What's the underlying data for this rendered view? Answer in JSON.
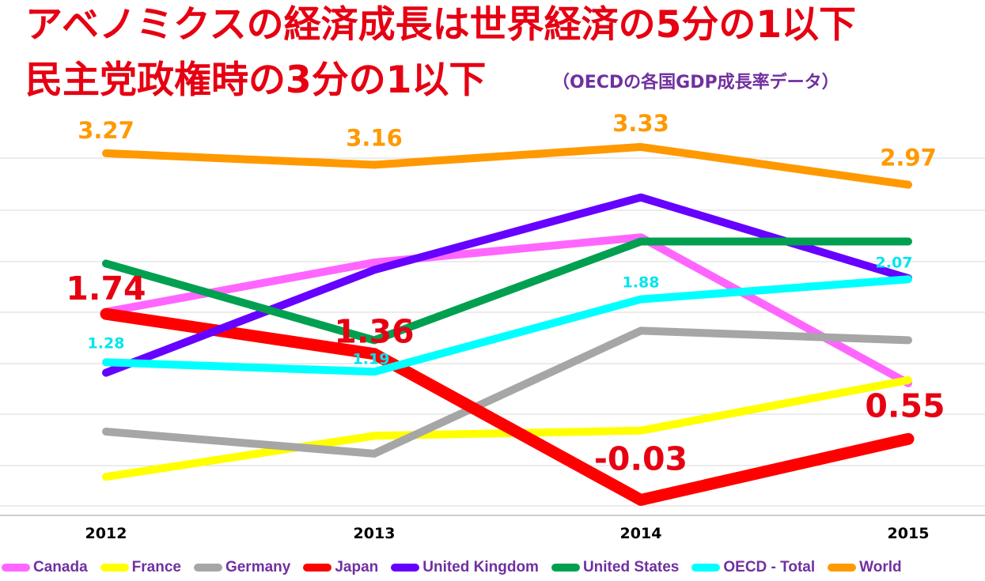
{
  "header": {
    "title_line1": "アベノミクスの経済成長は世界経済の5分の1以下",
    "title_line2": "民主党政権時の3分の1以下",
    "subtitle": "（OECDの各国GDP成長率データ）"
  },
  "chart_data": {
    "type": "line",
    "categories": [
      "2012",
      "2013",
      "2014",
      "2015"
    ],
    "ylim": [
      -0.2,
      3.6
    ],
    "grid": true,
    "legend_position": "bottom",
    "series": [
      {
        "name": "Canada",
        "color": "#ff66ff",
        "values": [
          1.76,
          2.23,
          2.47,
          1.08
        ]
      },
      {
        "name": "France",
        "color": "#ffff00",
        "values": [
          0.19,
          0.58,
          0.63,
          1.11
        ]
      },
      {
        "name": "Germany",
        "color": "#a6a6a6",
        "values": [
          0.62,
          0.41,
          1.58,
          1.49
        ]
      },
      {
        "name": "Japan",
        "color": "#ff0000",
        "values": [
          1.74,
          1.36,
          -0.03,
          0.55
        ]
      },
      {
        "name": "United Kingdom",
        "color": "#6600ff",
        "values": [
          1.18,
          2.16,
          2.85,
          2.08
        ]
      },
      {
        "name": "United States",
        "color": "#00a050",
        "values": [
          2.22,
          1.49,
          2.43,
          2.43
        ]
      },
      {
        "name": "OECD - Total",
        "color": "#00ffff",
        "values": [
          1.28,
          1.19,
          1.88,
          2.07
        ]
      },
      {
        "name": "World",
        "color": "#ff9900",
        "values": [
          3.27,
          3.16,
          3.33,
          2.97
        ]
      }
    ],
    "data_labels": [
      {
        "series": "World",
        "index": 0,
        "text": "3.27"
      },
      {
        "series": "World",
        "index": 1,
        "text": "3.16"
      },
      {
        "series": "World",
        "index": 2,
        "text": "3.33"
      },
      {
        "series": "World",
        "index": 3,
        "text": "2.97"
      },
      {
        "series": "Japan",
        "index": 0,
        "text": "1.74"
      },
      {
        "series": "Japan",
        "index": 1,
        "text": "1.36"
      },
      {
        "series": "Japan",
        "index": 2,
        "text": "-0.03"
      },
      {
        "series": "Japan",
        "index": 3,
        "text": "0.55"
      },
      {
        "series": "OECD - Total",
        "index": 0,
        "text": "1.28"
      },
      {
        "series": "OECD - Total",
        "index": 1,
        "text": "1.19"
      },
      {
        "series": "OECD - Total",
        "index": 2,
        "text": "1.88"
      },
      {
        "series": "OECD - Total",
        "index": 3,
        "text": "2.07"
      }
    ]
  }
}
